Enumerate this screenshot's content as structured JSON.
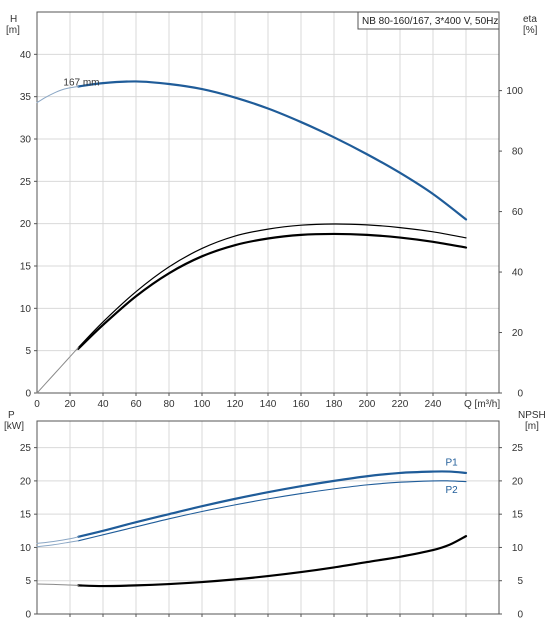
{
  "chart_data": [
    {
      "type": "line",
      "panel": "upper",
      "title": "NB 80-160/167, 3*400 V, 50Hz",
      "xlabel": "Q [m³/h]",
      "ylabel_left": "H",
      "ylabel_left_unit": "[m]",
      "ylabel_right": "eta",
      "ylabel_right_unit": "[%]",
      "xlim": [
        0,
        280
      ],
      "xticks": [
        0,
        20,
        40,
        60,
        80,
        100,
        120,
        140,
        160,
        180,
        200,
        220,
        240
      ],
      "ylim_left": [
        0,
        45
      ],
      "yticks_left": [
        0,
        5,
        10,
        15,
        20,
        25,
        30,
        35,
        40
      ],
      "ylim_right": [
        0,
        126
      ],
      "yticks_right": [
        0,
        20,
        40,
        60,
        80,
        100
      ],
      "grid": true,
      "annotations": [
        {
          "text": "167 mm",
          "x": 16,
          "y": 36.3
        }
      ],
      "series": [
        {
          "role": "head",
          "axis": "left",
          "color": "#1f5c99",
          "width": 2.2,
          "x": [
            25,
            40,
            60,
            80,
            100,
            120,
            140,
            160,
            180,
            200,
            220,
            240,
            260
          ],
          "y": [
            36.2,
            36.6,
            36.8,
            36.5,
            35.9,
            34.9,
            33.6,
            32.0,
            30.2,
            28.2,
            26.0,
            23.5,
            20.5
          ]
        },
        {
          "role": "head-extension",
          "axis": "left",
          "color": "#8aa6c4",
          "width": 1,
          "x": [
            0,
            5,
            10,
            15,
            20,
            25
          ],
          "y": [
            34.3,
            34.9,
            35.4,
            35.8,
            36.05,
            36.2
          ]
        },
        {
          "role": "eta",
          "axis": "right",
          "color": "#000000",
          "width": 1.2,
          "x": [
            25,
            40,
            60,
            80,
            100,
            120,
            140,
            160,
            180,
            200,
            220,
            240,
            260
          ],
          "y": [
            15.0,
            23.5,
            33.5,
            41.7,
            47.8,
            51.9,
            54.2,
            55.5,
            55.9,
            55.6,
            54.7,
            53.3,
            51.3
          ]
        },
        {
          "role": "eta-pump-motor",
          "axis": "right",
          "color": "#000000",
          "width": 2.2,
          "x": [
            25,
            40,
            60,
            80,
            100,
            120,
            140,
            160,
            180,
            200,
            220,
            240,
            260
          ],
          "y": [
            14.6,
            22.5,
            32.0,
            39.6,
            45.2,
            48.9,
            51.1,
            52.3,
            52.6,
            52.3,
            51.4,
            50.0,
            48.1
          ]
        },
        {
          "role": "eta-extension",
          "axis": "right",
          "color": "#8a8a8a",
          "width": 1,
          "x": [
            0,
            5,
            10,
            15,
            20,
            25
          ],
          "y": [
            0,
            3.0,
            6.0,
            9.0,
            12.0,
            15.0
          ]
        }
      ]
    },
    {
      "type": "line",
      "panel": "lower",
      "xlabel": "",
      "ylabel_left": "P",
      "ylabel_left_unit": "[kW]",
      "ylabel_right": "NPSH",
      "ylabel_right_unit": "[m]",
      "xlim": [
        0,
        280
      ],
      "ylim_left": [
        0,
        29
      ],
      "yticks_left": [
        0,
        5,
        10,
        15,
        20,
        25
      ],
      "ylim_right": [
        0,
        29
      ],
      "yticks_right": [
        0,
        5,
        10,
        15,
        20,
        25
      ],
      "grid": true,
      "series": [
        {
          "name": "P1",
          "axis": "left",
          "color": "#1f5c99",
          "width": 2.2,
          "x": [
            25,
            40,
            60,
            80,
            100,
            120,
            140,
            160,
            180,
            200,
            220,
            240,
            250,
            260
          ],
          "y": [
            11.6,
            12.5,
            13.8,
            15.0,
            16.2,
            17.3,
            18.3,
            19.2,
            20.0,
            20.7,
            21.2,
            21.4,
            21.4,
            21.2
          ]
        },
        {
          "name": "P2",
          "axis": "left",
          "color": "#1f5c99",
          "width": 1.1,
          "x": [
            25,
            40,
            60,
            80,
            100,
            120,
            140,
            160,
            180,
            200,
            220,
            240,
            250,
            260
          ],
          "y": [
            11.0,
            11.9,
            13.1,
            14.3,
            15.4,
            16.4,
            17.3,
            18.1,
            18.8,
            19.4,
            19.8,
            20.0,
            20.0,
            19.9
          ]
        },
        {
          "role": "P1-extension",
          "axis": "left",
          "color": "#8aa6c4",
          "width": 1,
          "x": [
            0,
            10,
            20,
            25
          ],
          "y": [
            10.6,
            10.9,
            11.3,
            11.6
          ]
        },
        {
          "role": "P2-extension",
          "axis": "left",
          "color": "#8aa6c4",
          "width": 1,
          "x": [
            0,
            10,
            20,
            25
          ],
          "y": [
            10.1,
            10.4,
            10.8,
            11.0
          ]
        },
        {
          "role": "npsh",
          "axis": "right",
          "color": "#000000",
          "width": 2.2,
          "x": [
            25,
            40,
            60,
            80,
            100,
            120,
            140,
            160,
            180,
            200,
            220,
            240,
            250,
            260
          ],
          "y": [
            4.3,
            4.2,
            4.3,
            4.5,
            4.8,
            5.2,
            5.7,
            6.3,
            7.0,
            7.8,
            8.6,
            9.6,
            10.4,
            11.7
          ]
        },
        {
          "role": "npsh-extension",
          "axis": "right",
          "color": "#8a8a8a",
          "width": 1,
          "x": [
            0,
            10,
            20,
            25
          ],
          "y": [
            4.5,
            4.45,
            4.35,
            4.3
          ]
        }
      ]
    }
  ]
}
